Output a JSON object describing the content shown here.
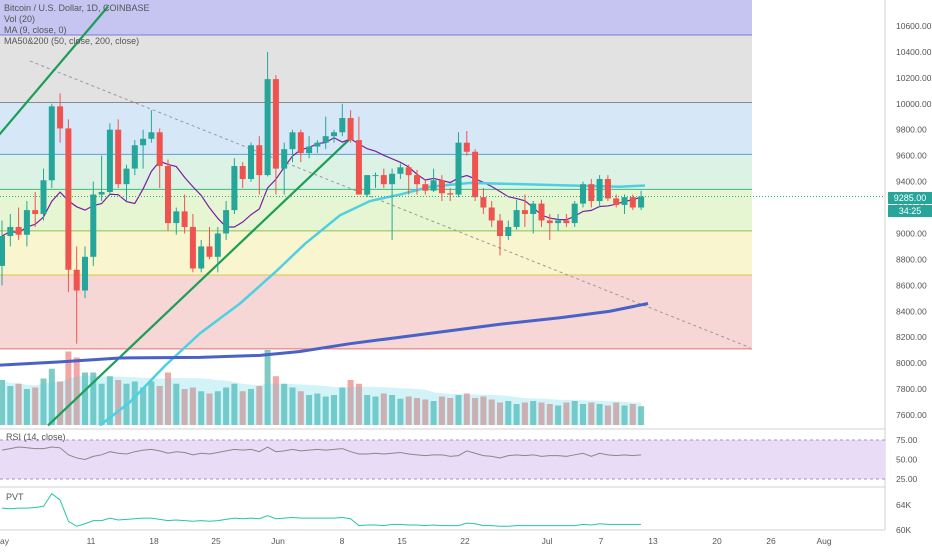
{
  "chart_data": {
    "type": "candlestick",
    "title": "Bitcoin / U.S. Dollar, 1D, COINBASE",
    "indicators": [
      "Vol (20)",
      "MA (9, close, 0)",
      "MA50&200 (50, close, 200, close)"
    ],
    "price_axis": {
      "min": 7500,
      "max": 10800,
      "ticks": [
        "10600.00",
        "10400.00",
        "10200.00",
        "10000.00",
        "9800.00",
        "9600.00",
        "9400.00",
        "9200.00",
        "9000.00",
        "8800.00",
        "8600.00",
        "8400.00",
        "8200.00",
        "8000.00",
        "7800.00",
        "7600.00"
      ]
    },
    "last_price": "9285.00",
    "countdown": "34:25",
    "x_axis_labels": [
      "ay",
      "11",
      "18",
      "25",
      "Jun",
      "8",
      "15",
      "22",
      "Jul",
      "7",
      "13",
      "20",
      "26",
      "Aug"
    ],
    "colors": {
      "up": "#26a69a",
      "down": "#ef5350",
      "ma9": "#7b1fa2",
      "ma50": "#4dd0e1",
      "ma200": "#4a62c7"
    },
    "fib_levels": [
      10530,
      10010,
      9610,
      9340,
      9020,
      8680,
      8110
    ],
    "fib_colors": [
      "#c6c4f0",
      "#e2e2e2",
      "#d6e8f7",
      "#dcf2e4",
      "#e6f5d2",
      "#f9f5cf",
      "#f7d7d5"
    ],
    "candles": [
      {
        "o": 8750,
        "h": 9100,
        "l": 8600,
        "c": 8980
      },
      {
        "o": 8980,
        "h": 9150,
        "l": 8900,
        "c": 9050
      },
      {
        "o": 9050,
        "h": 9200,
        "l": 8950,
        "c": 8990
      },
      {
        "o": 8990,
        "h": 9250,
        "l": 8900,
        "c": 9180
      },
      {
        "o": 9180,
        "h": 9320,
        "l": 9050,
        "c": 9150
      },
      {
        "o": 9150,
        "h": 9500,
        "l": 9100,
        "c": 9410
      },
      {
        "o": 9410,
        "h": 10000,
        "l": 9350,
        "c": 9980
      },
      {
        "o": 9980,
        "h": 10080,
        "l": 9700,
        "c": 9810
      },
      {
        "o": 9810,
        "h": 9880,
        "l": 8550,
        "c": 8720
      },
      {
        "o": 8720,
        "h": 8900,
        "l": 8150,
        "c": 8560
      },
      {
        "o": 8560,
        "h": 8900,
        "l": 8500,
        "c": 8820
      },
      {
        "o": 8820,
        "h": 9400,
        "l": 8750,
        "c": 9300
      },
      {
        "o": 9300,
        "h": 9600,
        "l": 9250,
        "c": 9320
      },
      {
        "o": 9320,
        "h": 9850,
        "l": 9300,
        "c": 9800
      },
      {
        "o": 9800,
        "h": 9880,
        "l": 9350,
        "c": 9380
      },
      {
        "o": 9380,
        "h": 9530,
        "l": 9250,
        "c": 9500
      },
      {
        "o": 9500,
        "h": 9720,
        "l": 9450,
        "c": 9680
      },
      {
        "o": 9680,
        "h": 9800,
        "l": 9500,
        "c": 9730
      },
      {
        "o": 9730,
        "h": 9950,
        "l": 9700,
        "c": 9780
      },
      {
        "o": 9780,
        "h": 9810,
        "l": 9350,
        "c": 9520
      },
      {
        "o": 9520,
        "h": 9570,
        "l": 9020,
        "c": 9080
      },
      {
        "o": 9080,
        "h": 9200,
        "l": 8990,
        "c": 9170
      },
      {
        "o": 9170,
        "h": 9300,
        "l": 9000,
        "c": 9050
      },
      {
        "o": 9050,
        "h": 9150,
        "l": 8700,
        "c": 8730
      },
      {
        "o": 8730,
        "h": 8950,
        "l": 8700,
        "c": 8900
      },
      {
        "o": 8900,
        "h": 9050,
        "l": 8800,
        "c": 8820
      },
      {
        "o": 8820,
        "h": 9050,
        "l": 8700,
        "c": 9000
      },
      {
        "o": 9000,
        "h": 9250,
        "l": 8950,
        "c": 9180
      },
      {
        "o": 9180,
        "h": 9580,
        "l": 9150,
        "c": 9520
      },
      {
        "o": 9520,
        "h": 9550,
        "l": 9350,
        "c": 9420
      },
      {
        "o": 9420,
        "h": 9700,
        "l": 9400,
        "c": 9680
      },
      {
        "o": 9680,
        "h": 9750,
        "l": 9300,
        "c": 9450
      },
      {
        "o": 9450,
        "h": 10400,
        "l": 9440,
        "c": 10190
      },
      {
        "o": 10190,
        "h": 10220,
        "l": 9300,
        "c": 9500
      },
      {
        "o": 9500,
        "h": 9700,
        "l": 9300,
        "c": 9650
      },
      {
        "o": 9650,
        "h": 9800,
        "l": 9550,
        "c": 9780
      },
      {
        "o": 9780,
        "h": 9800,
        "l": 9550,
        "c": 9620
      },
      {
        "o": 9620,
        "h": 9750,
        "l": 9580,
        "c": 9670
      },
      {
        "o": 9670,
        "h": 9720,
        "l": 9620,
        "c": 9700
      },
      {
        "o": 9700,
        "h": 9900,
        "l": 9650,
        "c": 9750
      },
      {
        "o": 9750,
        "h": 9800,
        "l": 9700,
        "c": 9780
      },
      {
        "o": 9780,
        "h": 10000,
        "l": 9750,
        "c": 9890
      },
      {
        "o": 9890,
        "h": 9950,
        "l": 9700,
        "c": 9720
      },
      {
        "o": 9720,
        "h": 9900,
        "l": 9300,
        "c": 9300
      },
      {
        "o": 9300,
        "h": 9450,
        "l": 9280,
        "c": 9450
      },
      {
        "o": 9450,
        "h": 9470,
        "l": 9350,
        "c": 9450
      },
      {
        "o": 9450,
        "h": 9500,
        "l": 9350,
        "c": 9380
      },
      {
        "o": 9380,
        "h": 9500,
        "l": 8950,
        "c": 9460
      },
      {
        "o": 9460,
        "h": 9540,
        "l": 9420,
        "c": 9510
      },
      {
        "o": 9510,
        "h": 9530,
        "l": 9300,
        "c": 9450
      },
      {
        "o": 9450,
        "h": 9490,
        "l": 9300,
        "c": 9380
      },
      {
        "o": 9380,
        "h": 9420,
        "l": 9300,
        "c": 9330
      },
      {
        "o": 9330,
        "h": 9500,
        "l": 9320,
        "c": 9410
      },
      {
        "o": 9410,
        "h": 9450,
        "l": 9250,
        "c": 9310
      },
      {
        "o": 9310,
        "h": 9350,
        "l": 9250,
        "c": 9300
      },
      {
        "o": 9300,
        "h": 9780,
        "l": 9280,
        "c": 9700
      },
      {
        "o": 9700,
        "h": 9790,
        "l": 9600,
        "c": 9630
      },
      {
        "o": 9630,
        "h": 9650,
        "l": 9250,
        "c": 9280
      },
      {
        "o": 9280,
        "h": 9350,
        "l": 9150,
        "c": 9200
      },
      {
        "o": 9200,
        "h": 9250,
        "l": 9050,
        "c": 9100
      },
      {
        "o": 9100,
        "h": 9150,
        "l": 8830,
        "c": 8980
      },
      {
        "o": 8980,
        "h": 9100,
        "l": 8950,
        "c": 9050
      },
      {
        "o": 9050,
        "h": 9260,
        "l": 9030,
        "c": 9180
      },
      {
        "o": 9180,
        "h": 9300,
        "l": 9050,
        "c": 9150
      },
      {
        "o": 9150,
        "h": 9250,
        "l": 9000,
        "c": 9230
      },
      {
        "o": 9230,
        "h": 9260,
        "l": 9050,
        "c": 9100
      },
      {
        "o": 9100,
        "h": 9150,
        "l": 8950,
        "c": 9080
      },
      {
        "o": 9080,
        "h": 9150,
        "l": 9020,
        "c": 9100
      },
      {
        "o": 9100,
        "h": 9150,
        "l": 9050,
        "c": 9080
      },
      {
        "o": 9080,
        "h": 9250,
        "l": 9050,
        "c": 9230
      },
      {
        "o": 9230,
        "h": 9400,
        "l": 9200,
        "c": 9380
      },
      {
        "o": 9380,
        "h": 9420,
        "l": 9200,
        "c": 9250
      },
      {
        "o": 9250,
        "h": 9450,
        "l": 9200,
        "c": 9420
      },
      {
        "o": 9420,
        "h": 9450,
        "l": 9250,
        "c": 9270
      },
      {
        "o": 9270,
        "h": 9300,
        "l": 9200,
        "c": 9220
      },
      {
        "o": 9220,
        "h": 9300,
        "l": 9150,
        "c": 9280
      },
      {
        "o": 9280,
        "h": 9300,
        "l": 9180,
        "c": 9200
      },
      {
        "o": 9200,
        "h": 9330,
        "l": 9180,
        "c": 9285
      }
    ],
    "volume": [
      60,
      52,
      55,
      48,
      50,
      62,
      75,
      58,
      98,
      90,
      70,
      70,
      55,
      65,
      60,
      55,
      58,
      50,
      58,
      52,
      70,
      55,
      48,
      50,
      45,
      42,
      45,
      50,
      55,
      45,
      48,
      52,
      100,
      65,
      55,
      50,
      45,
      40,
      42,
      38,
      40,
      50,
      60,
      55,
      40,
      38,
      42,
      40,
      35,
      38,
      36,
      34,
      32,
      38,
      36,
      40,
      42,
      36,
      38,
      34,
      30,
      32,
      28,
      30,
      32,
      30,
      28,
      26,
      30,
      32,
      28,
      30,
      28,
      26,
      30,
      26,
      28,
      25
    ],
    "rsi": {
      "label": "RSI (14, close)",
      "ticks": [
        "75.00",
        "50.00",
        "25.00"
      ],
      "values": [
        62,
        64,
        66,
        65,
        64,
        64,
        66,
        65,
        56,
        52,
        50,
        54,
        56,
        60,
        58,
        57,
        60,
        62,
        63,
        61,
        58,
        60,
        59,
        56,
        58,
        57,
        59,
        61,
        63,
        62,
        63,
        60,
        66,
        60,
        61,
        63,
        61,
        62,
        63,
        62,
        63,
        64,
        60,
        57,
        57,
        58,
        57,
        58,
        59,
        57,
        56,
        55,
        56,
        56,
        54,
        55,
        61,
        58,
        55,
        54,
        52,
        55,
        56,
        55,
        56,
        54,
        55,
        55,
        54,
        56,
        58,
        54,
        58,
        56,
        55,
        56,
        55,
        56
      ]
    },
    "pvt": {
      "label": "PVT",
      "ticks": [
        "64K",
        "60K"
      ],
      "values": [
        63.5,
        63.4,
        63.5,
        63.5,
        63.6,
        63.8,
        65.8,
        64.8,
        61.4,
        60.6,
        61.0,
        61.5,
        61.5,
        61.9,
        61.6,
        61.7,
        61.8,
        61.9,
        61.9,
        61.7,
        61.5,
        61.6,
        61.5,
        61.4,
        61.5,
        61.4,
        61.5,
        61.7,
        61.9,
        61.8,
        61.9,
        61.8,
        62.3,
        61.8,
        61.9,
        62.0,
        61.9,
        61.9,
        61.9,
        61.9,
        61.9,
        62.0,
        61.8,
        60.7,
        60.8,
        60.8,
        60.7,
        60.9,
        60.9,
        60.8,
        60.8,
        60.7,
        60.8,
        60.7,
        60.7,
        60.7,
        61.1,
        61.0,
        60.7,
        60.7,
        60.6,
        60.6,
        60.7,
        60.7,
        60.7,
        60.7,
        60.7,
        60.7,
        60.7,
        60.7,
        60.9,
        60.8,
        61.0,
        60.9,
        60.9,
        60.9,
        60.9,
        60.9
      ]
    }
  }
}
